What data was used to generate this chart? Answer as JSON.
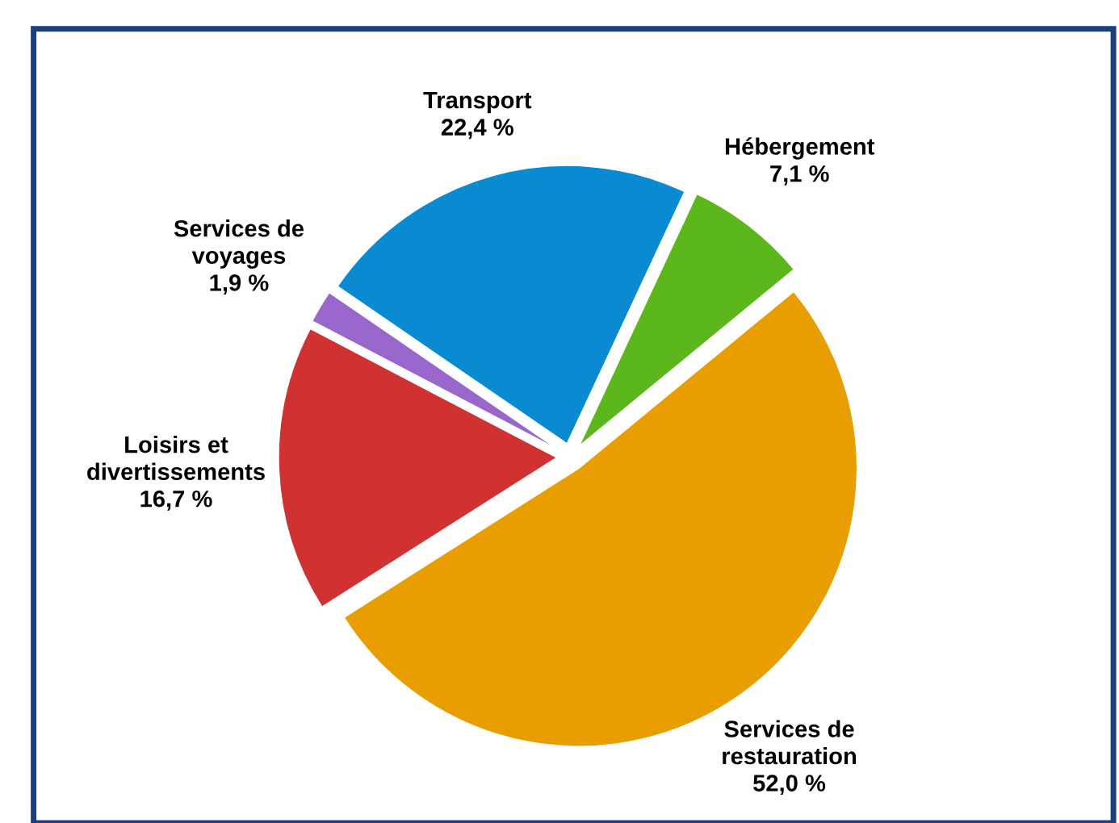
{
  "chart_data": {
    "type": "pie",
    "categories": [
      "Hébergement",
      "Services de restauration",
      "Loisirs et divertissements",
      "Services de voyages",
      "Transport"
    ],
    "values": [
      7.1,
      52.0,
      16.7,
      1.9,
      22.4
    ],
    "value_labels": [
      "7,1 %",
      "52,0 %",
      "16,7 %",
      "1,9 %",
      "22,4 %"
    ],
    "colors": [
      "#5cb71c",
      "#e89e00",
      "#d03232",
      "#9966cc",
      "#0a8bd1"
    ]
  }
}
